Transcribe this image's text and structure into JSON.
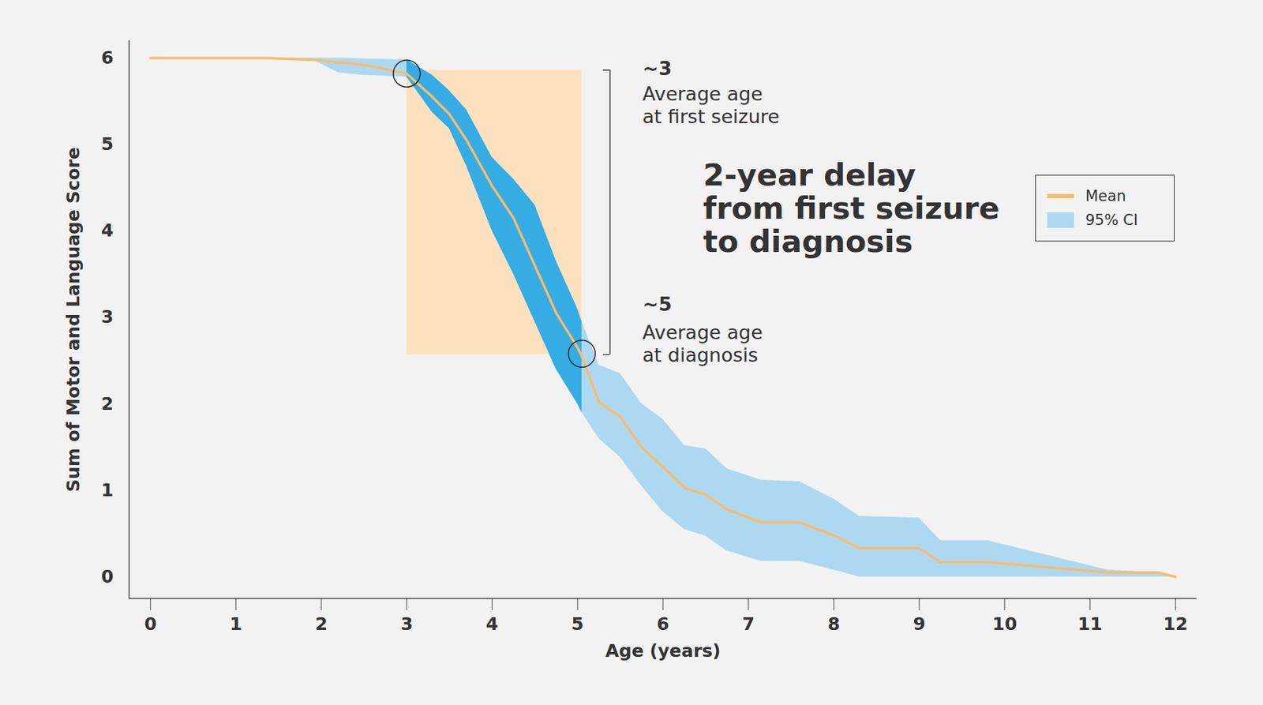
{
  "chart_data": {
    "type": "line",
    "xlabel": "Age (years)",
    "ylabel": "Sum of Motor and Language Score",
    "x": [
      0,
      1,
      1.35,
      1.9,
      2.2,
      2.5,
      3,
      3.3,
      3.5,
      3.7,
      4,
      4.25,
      4.5,
      4.75,
      5,
      5.05,
      5.25,
      5.5,
      5.75,
      6,
      6.25,
      6.5,
      6.75,
      7.15,
      7.6,
      8,
      8.3,
      9,
      9.25,
      9.8,
      10.5,
      11.2,
      11.8,
      12
    ],
    "series": [
      {
        "name": "Mean",
        "type": "line",
        "color": "#f9bb6f",
        "values": [
          6,
          6,
          6,
          5.98,
          5.95,
          5.92,
          5.82,
          5.55,
          5.35,
          5.05,
          4.52,
          4.15,
          3.6,
          3.05,
          2.65,
          2.55,
          2.02,
          1.85,
          1.5,
          1.27,
          1.03,
          0.95,
          0.78,
          0.63,
          0.63,
          0.48,
          0.33,
          0.33,
          0.17,
          0.17,
          0.11,
          0.05,
          0.05,
          0
        ]
      },
      {
        "name": "95% CI",
        "type": "area",
        "color": "#acd9f1",
        "lower": [
          6,
          6,
          6,
          5.98,
          5.83,
          5.8,
          5.78,
          5.37,
          5.18,
          4.75,
          4.0,
          3.5,
          2.95,
          2.4,
          2.0,
          1.9,
          1.6,
          1.38,
          1.05,
          0.75,
          0.55,
          0.47,
          0.3,
          0.18,
          0.18,
          0.08,
          0,
          0,
          0,
          0,
          0,
          0,
          0,
          0
        ],
        "upper": [
          6,
          6,
          6,
          6,
          6,
          5.99,
          5.98,
          5.8,
          5.62,
          5.4,
          4.85,
          4.6,
          4.3,
          3.65,
          3.1,
          2.95,
          2.45,
          2.35,
          2.0,
          1.82,
          1.52,
          1.48,
          1.25,
          1.12,
          1.1,
          0.9,
          0.7,
          0.68,
          0.42,
          0.42,
          0.25,
          0.08,
          0.05,
          0
        ]
      }
    ],
    "xlim": [
      -0.25,
      12.25
    ],
    "ylim": [
      -0.25,
      6.2
    ],
    "xticks": [
      0,
      1,
      2,
      3,
      4,
      5,
      6,
      7,
      8,
      9,
      10,
      11,
      12
    ],
    "yticks": [
      0,
      1,
      2,
      3,
      4,
      5,
      6
    ],
    "legend": "upper right",
    "highlight": {
      "x": [
        3,
        5.05
      ],
      "y": [
        2.57,
        5.86
      ],
      "color": "#fde1bf"
    },
    "annotations": [
      {
        "label": "~3",
        "text": "Average age\nat first seizure",
        "x": 3,
        "y": 5.82
      },
      {
        "label": "~5",
        "text": "Average age\nat diagnosis",
        "x": 5.05,
        "y": 2.58
      },
      {
        "text": "2-year delay\nfrom first seizure\nto diagnosis"
      }
    ]
  }
}
